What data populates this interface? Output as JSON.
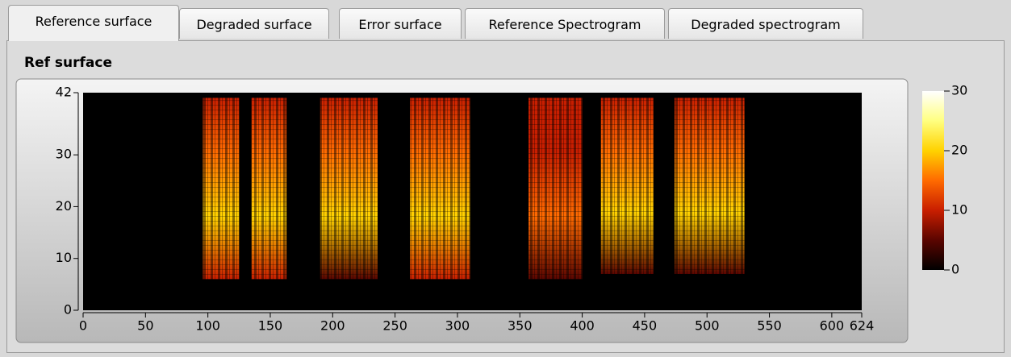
{
  "tabs": [
    "Reference surface",
    "Degraded surface",
    "Error surface",
    "Reference Spectrogram",
    "Degraded spectrogram"
  ],
  "active_tab": 0,
  "panel_title": "Ref surface",
  "chart_data": {
    "type": "heatmap",
    "xlim": [
      0,
      624
    ],
    "xticks": [
      0,
      50,
      100,
      150,
      200,
      250,
      300,
      350,
      400,
      450,
      500,
      550,
      600,
      624
    ],
    "ylim": [
      0,
      42
    ],
    "yticks": [
      0,
      10,
      20,
      30,
      42
    ],
    "zlim": [
      0,
      30
    ],
    "zticks": [
      0,
      10,
      20,
      30
    ],
    "colormap": [
      "#000000",
      "#5a0500",
      "#c81e00",
      "#ff6a00",
      "#ffd200",
      "#ffff80",
      "#ffffff"
    ],
    "bursts": [
      {
        "x": [
          96,
          125
        ],
        "y": [
          6,
          41
        ],
        "level": 20
      },
      {
        "x": [
          135,
          163
        ],
        "y": [
          6,
          41
        ],
        "level": 20
      },
      {
        "x": [
          190,
          236
        ],
        "y": [
          6,
          41
        ],
        "level": 18
      },
      {
        "x": [
          262,
          310
        ],
        "y": [
          6,
          41
        ],
        "level": 19
      },
      {
        "x": [
          357,
          400
        ],
        "y": [
          6,
          41
        ],
        "level": 14
      },
      {
        "x": [
          415,
          457
        ],
        "y": [
          7,
          41
        ],
        "level": 18
      },
      {
        "x": [
          474,
          530
        ],
        "y": [
          7,
          41
        ],
        "level": 18
      }
    ]
  }
}
